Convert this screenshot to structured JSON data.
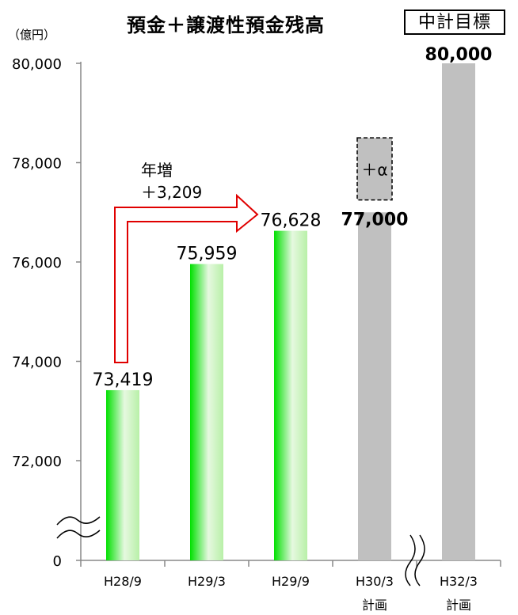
{
  "title": "預金＋譲渡性預金残高",
  "unit_label": "（億円）",
  "target_box_label": "中計目標",
  "growth_annotation": {
    "line1": "年増",
    "line2": "＋3,209"
  },
  "alpha_label": "＋α",
  "colors": {
    "actual_bar": "#00e000",
    "plan_bar": "#c0c0c0",
    "arrow": "#e00000"
  },
  "chart_data": {
    "type": "bar",
    "title": "預金＋譲渡性預金残高",
    "ylabel": "（億円）",
    "xlabel": "",
    "ylim": [
      72000,
      80000
    ],
    "axis_break": true,
    "y_ticks": [
      "0",
      "72,000",
      "74,000",
      "76,000",
      "78,000",
      "80,000"
    ],
    "categories": [
      {
        "line1": "H28/9",
        "line2": ""
      },
      {
        "line1": "H29/3",
        "line2": ""
      },
      {
        "line1": "H29/9",
        "line2": ""
      },
      {
        "line1": "H30/3",
        "line2": "計画"
      },
      {
        "line1": "H32/3",
        "line2": "計画"
      }
    ],
    "values": [
      73419,
      75959,
      76628,
      77000,
      80000
    ],
    "value_labels": [
      "73,419",
      "75,959",
      "76,628",
      "77,000",
      "80,000"
    ],
    "kinds": [
      "actual",
      "actual",
      "actual",
      "plan",
      "plan"
    ],
    "alpha_extension_top": 78500,
    "grid": false
  }
}
